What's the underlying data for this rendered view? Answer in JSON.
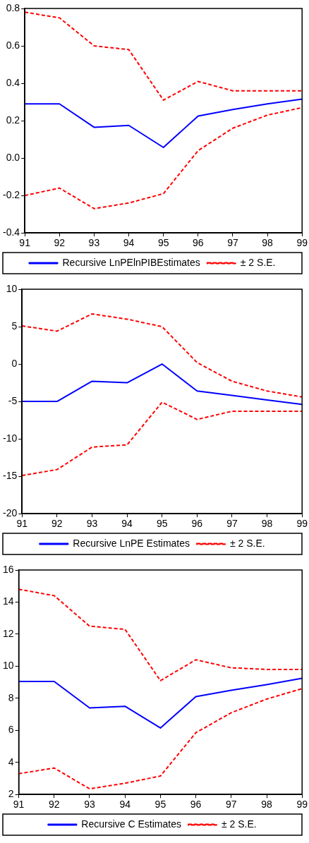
{
  "chart_data": [
    {
      "type": "line",
      "x": [
        91,
        92,
        93,
        94,
        95,
        96,
        97,
        98,
        99
      ],
      "xlim": [
        91,
        99
      ],
      "xticks": [
        91,
        92,
        93,
        94,
        95,
        96,
        97,
        98,
        99
      ],
      "ylim": [
        -0.4,
        0.8
      ],
      "yticks": [
        {
          "value": -0.4,
          "label": "-0.4"
        },
        {
          "value": -0.2,
          "label": "-0.2"
        },
        {
          "value": 0,
          "label": "0.0"
        },
        {
          "value": 0.2,
          "label": "0.2"
        },
        {
          "value": 0.4,
          "label": "0.4"
        },
        {
          "value": 0.6,
          "label": "0.6"
        },
        {
          "value": 0.8,
          "label": "0.8"
        }
      ],
      "legend": "bottom",
      "series": [
        {
          "name": "Recursive LnPElnPIBEstimates",
          "color": "#0000ff",
          "line_style": "solid",
          "values": [
            0.29,
            0.29,
            0.165,
            0.175,
            0.057,
            0.225,
            0.26,
            0.29,
            0.315
          ]
        },
        {
          "name": "± 2 S.E.",
          "color": "#ff0000",
          "line_style": "dashed",
          "values": [
            0.78,
            0.75,
            0.6,
            0.58,
            0.31,
            0.41,
            0.36,
            0.36,
            0.36
          ]
        },
        {
          "color": "#ff0000",
          "line_style": "dashed",
          "values": [
            -0.2,
            -0.16,
            -0.27,
            -0.24,
            -0.19,
            0.04,
            0.16,
            0.23,
            0.27
          ]
        }
      ]
    },
    {
      "type": "line",
      "x": [
        91,
        92,
        93,
        94,
        95,
        96,
        97,
        98,
        99
      ],
      "xlim": [
        91,
        99
      ],
      "xticks": [
        91,
        92,
        93,
        94,
        95,
        96,
        97,
        98,
        99
      ],
      "ylim": [
        -20,
        10
      ],
      "yticks": [
        -20,
        -15,
        -10,
        -5,
        0,
        5,
        10
      ],
      "legend": "bottom",
      "series": [
        {
          "name": "Recursive LnPE Estimates",
          "color": "#0000ff",
          "line_style": "solid",
          "values": [
            -5,
            -5,
            -2.3,
            -2.5,
            0,
            -3.6,
            -4.2,
            -4.8,
            -5.4
          ]
        },
        {
          "name": "± 2 S.E.",
          "color": "#ff0000",
          "line_style": "dashed",
          "values": [
            5.1,
            4.4,
            6.7,
            6.0,
            5.0,
            0.2,
            -2.3,
            -3.6,
            -4.4
          ]
        },
        {
          "color": "#ff0000",
          "line_style": "dashed",
          "values": [
            -14.9,
            -14.1,
            -11.1,
            -10.8,
            -5.1,
            -7.4,
            -6.3,
            -6.3,
            -6.3
          ]
        }
      ]
    },
    {
      "type": "line",
      "x": [
        91,
        92,
        93,
        94,
        95,
        96,
        97,
        98,
        99
      ],
      "xlim": [
        91,
        99
      ],
      "xticks": [
        91,
        92,
        93,
        94,
        95,
        96,
        97,
        98,
        99
      ],
      "ylim": [
        2,
        16
      ],
      "yticks": [
        2,
        4,
        6,
        8,
        10,
        12,
        14,
        16
      ],
      "legend": "bottom",
      "series": [
        {
          "name": "Recursive C Estimates",
          "color": "#0000ff",
          "line_style": "solid",
          "values": [
            9.05,
            9.05,
            7.4,
            7.5,
            6.15,
            8.1,
            8.5,
            8.85,
            9.25
          ]
        },
        {
          "name": "± 2 S.E.",
          "color": "#ff0000",
          "line_style": "dashed",
          "values": [
            14.8,
            14.4,
            12.5,
            12.3,
            9.1,
            10.4,
            9.9,
            9.8,
            9.8
          ]
        },
        {
          "color": "#ff0000",
          "line_style": "dashed",
          "values": [
            3.3,
            3.65,
            2.35,
            2.7,
            3.15,
            5.85,
            7.1,
            7.95,
            8.6
          ]
        }
      ]
    }
  ]
}
